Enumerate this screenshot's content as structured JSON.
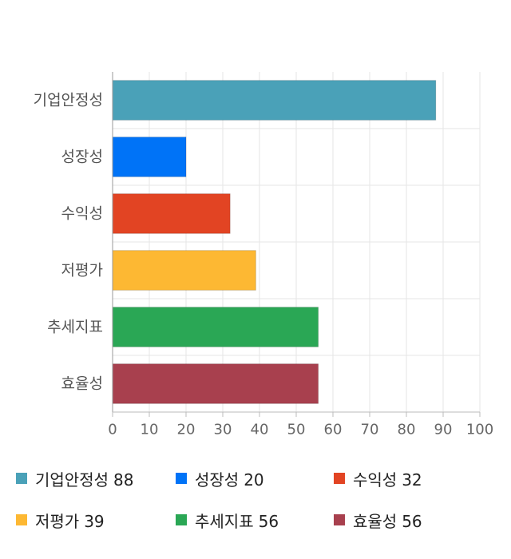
{
  "chart_data": {
    "type": "bar",
    "orientation": "horizontal",
    "categories": [
      "기업안정성",
      "성장성",
      "수익성",
      "저평가",
      "추세지표",
      "효율성"
    ],
    "values": [
      88,
      20,
      32,
      39,
      56,
      56
    ],
    "colors": [
      "#4aa1b8",
      "#0073f7",
      "#e24423",
      "#fdb833",
      "#2aa755",
      "#a8404e"
    ],
    "xlim": [
      0,
      100
    ],
    "xticks": [
      0,
      10,
      20,
      30,
      40,
      50,
      60,
      70,
      80,
      90,
      100
    ],
    "grid": true,
    "legend": "bottom",
    "title": "",
    "xlabel": "",
    "ylabel": ""
  }
}
